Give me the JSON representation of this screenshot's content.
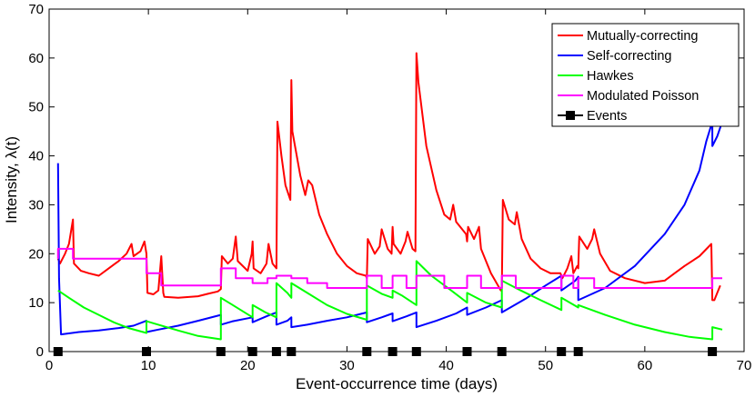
{
  "chart_data": {
    "type": "line",
    "title": "",
    "xlabel": "Event-occurrence time (days)",
    "ylabel": "Intensity, λ(t)",
    "xlim": [
      0,
      70
    ],
    "ylim": [
      0,
      70
    ],
    "xticks": [
      0,
      10,
      20,
      30,
      40,
      50,
      60,
      70
    ],
    "yticks": [
      0,
      10,
      20,
      30,
      40,
      50,
      60,
      70
    ],
    "grid": false,
    "legend_position": "top-right",
    "events": [
      0.9,
      9.8,
      17.3,
      20.5,
      22.9,
      24.4,
      32.0,
      34.6,
      37.0,
      42.1,
      45.6,
      51.6,
      53.3,
      66.8
    ],
    "series": [
      {
        "name": "Mutually-correcting",
        "color": "#ff0000",
        "x": [
          0.9,
          1.1,
          1.6,
          2.0,
          2.4,
          2.5,
          3.2,
          4.0,
          5.0,
          6.0,
          7.0,
          7.8,
          8.3,
          8.5,
          9.2,
          9.6,
          9.8,
          9.9,
          10.5,
          11.0,
          11.3,
          11.5,
          11.6,
          13.0,
          15.0,
          16.0,
          17.0,
          17.3,
          17.4,
          18.0,
          18.5,
          18.8,
          19.0,
          20.0,
          20.4,
          20.5,
          20.6,
          21.3,
          21.9,
          22.1,
          22.5,
          22.9,
          23.0,
          23.4,
          23.8,
          24.3,
          24.4,
          24.5,
          25.3,
          25.8,
          26.1,
          26.5,
          27.2,
          28.0,
          29.0,
          30.0,
          31.0,
          31.9,
          32.0,
          32.1,
          32.8,
          33.3,
          33.5,
          34.1,
          34.5,
          34.6,
          34.7,
          35.4,
          35.9,
          36.1,
          36.6,
          36.9,
          37.0,
          37.2,
          38.0,
          39.0,
          39.8,
          40.4,
          40.7,
          41.0,
          42.0,
          42.1,
          42.2,
          42.8,
          43.3,
          43.5,
          44.5,
          45.5,
          45.6,
          45.7,
          46.3,
          46.9,
          47.1,
          47.6,
          48.5,
          49.5,
          50.5,
          51.5,
          51.6,
          51.7,
          52.2,
          52.6,
          52.8,
          53.2,
          53.3,
          53.4,
          54.2,
          54.7,
          54.9,
          55.5,
          56.5,
          58.0,
          60.0,
          62.0,
          63.0,
          64.0,
          65.5,
          66.7,
          66.8,
          67.0,
          67.3,
          67.6
        ],
        "values": [
          19,
          18,
          20,
          22,
          27,
          18,
          16.5,
          16,
          15.5,
          17,
          18.5,
          20,
          22,
          19.5,
          20.5,
          22.5,
          20,
          12,
          11.7,
          12.5,
          19.5,
          12,
          11.2,
          11,
          11.3,
          11.8,
          12.3,
          12.8,
          19.5,
          18,
          19,
          23.5,
          18.5,
          16.5,
          20,
          22.5,
          17,
          16,
          18,
          22,
          18,
          17,
          47,
          40,
          34,
          31,
          55.5,
          45,
          36,
          32,
          35,
          34,
          28,
          24,
          20,
          17.5,
          16,
          15.5,
          15,
          23,
          20,
          21.5,
          25,
          21,
          20,
          25.5,
          22,
          20,
          22.5,
          24.5,
          21,
          20.5,
          61,
          55,
          42,
          33,
          28,
          27,
          30,
          26.5,
          24,
          22.5,
          25.5,
          23,
          25.5,
          21,
          16,
          12.5,
          13,
          31,
          27,
          26,
          28.5,
          23,
          19,
          17,
          16,
          16,
          15.5,
          15,
          17,
          19.5,
          16,
          17.5,
          17,
          23.5,
          21,
          23,
          25,
          20,
          16.5,
          15,
          14,
          14.5,
          16,
          17.5,
          19.5,
          22,
          10.5,
          10.5,
          12,
          13.5
        ]
      },
      {
        "name": "Self-correcting",
        "color": "#0000ff",
        "x": [
          0.9,
          1.0,
          1.2,
          3.0,
          5.0,
          7.0,
          8.5,
          9.8,
          9.8,
          11.0,
          13.0,
          15.0,
          17.3,
          17.3,
          18.5,
          20.5,
          20.5,
          22.0,
          22.9,
          22.9,
          24.0,
          24.4,
          24.4,
          26.0,
          28.0,
          30.0,
          32.0,
          32.0,
          33.5,
          34.6,
          34.6,
          36.0,
          37.0,
          37.0,
          39.0,
          41.0,
          42.1,
          42.1,
          44.0,
          45.6,
          45.6,
          48.0,
          50.0,
          51.6,
          51.6,
          53.0,
          53.3,
          53.3,
          56.0,
          59.0,
          62.0,
          64.0,
          65.5,
          66.2,
          66.8,
          66.8,
          67.3,
          67.8
        ],
        "values": [
          38.5,
          15,
          3.5,
          4,
          4.3,
          4.8,
          5.3,
          6.3,
          4,
          4.5,
          5.3,
          6.3,
          7.5,
          5.5,
          6.2,
          7,
          6,
          7.3,
          8,
          5.5,
          6.3,
          7,
          5,
          5.5,
          6.3,
          7,
          8,
          6,
          7,
          7.8,
          6.2,
          7.2,
          8,
          5,
          6.3,
          7.8,
          9,
          7.5,
          9,
          10.5,
          8,
          10.8,
          13.5,
          15.5,
          12.5,
          14.5,
          15.3,
          10.5,
          13,
          17.5,
          24,
          30,
          37,
          43,
          47,
          42,
          44,
          47
        ]
      },
      {
        "name": "Hawkes",
        "color": "#00ff00",
        "x": [
          0.9,
          2.0,
          3.5,
          5.0,
          6.5,
          8.0,
          9.8,
          9.8,
          11.0,
          13.0,
          15.0,
          17.3,
          17.3,
          18.5,
          20.5,
          20.5,
          21.8,
          22.9,
          22.9,
          24.0,
          24.4,
          24.4,
          26.0,
          28.0,
          30.0,
          32.0,
          32.0,
          33.5,
          34.6,
          34.6,
          35.5,
          37.0,
          37.0,
          38.5,
          40.5,
          42.1,
          42.1,
          44.0,
          45.6,
          45.6,
          47.5,
          49.5,
          51.6,
          51.6,
          53.3,
          53.3,
          56.0,
          59.0,
          62.0,
          64.5,
          66.8,
          66.8,
          67.8
        ],
        "values": [
          12.5,
          11,
          9,
          7.5,
          6,
          4.8,
          3.8,
          6.2,
          5.5,
          4.3,
          3.2,
          2.5,
          11,
          9.5,
          7,
          9.5,
          8,
          7,
          14,
          12,
          11,
          14,
          12,
          9.5,
          7.7,
          6.5,
          13.5,
          11.8,
          11,
          12.5,
          11.5,
          9.5,
          18.5,
          15.5,
          12.5,
          10,
          12,
          10,
          9,
          14.5,
          12.5,
          10.5,
          8.5,
          11,
          9,
          9.5,
          7.5,
          5.5,
          4,
          3,
          2.5,
          5,
          4.5
        ]
      },
      {
        "name": "Modulated Poisson",
        "color": "#ff00ff",
        "x": [
          0.9,
          0.9,
          2.4,
          2.4,
          9.8,
          9.8,
          11.3,
          11.3,
          17.3,
          17.3,
          18.8,
          18.8,
          20.5,
          20.5,
          22.0,
          22.0,
          22.9,
          22.9,
          24.4,
          24.4,
          26.0,
          26.0,
          28.0,
          28.0,
          32.0,
          32.0,
          33.5,
          33.5,
          34.6,
          34.6,
          36.0,
          36.0,
          37.0,
          37.0,
          39.8,
          39.8,
          42.1,
          42.1,
          43.5,
          43.5,
          45.6,
          45.6,
          47.0,
          47.0,
          51.6,
          51.6,
          52.8,
          52.8,
          53.3,
          53.3,
          54.9,
          54.9,
          66.8,
          66.8,
          67.8
        ],
        "values": [
          19,
          21,
          21,
          19,
          19,
          16,
          16,
          13.5,
          13.5,
          17,
          17,
          15,
          15,
          14,
          14,
          15,
          15,
          15.5,
          15.5,
          15,
          15,
          14,
          14,
          13,
          13,
          15.5,
          15.5,
          13,
          13,
          15.5,
          15.5,
          13,
          13,
          15.5,
          15.5,
          13,
          13,
          15.5,
          15.5,
          13,
          13,
          15.5,
          15.5,
          13,
          13,
          15.5,
          15.5,
          13,
          13,
          15,
          15,
          13,
          13,
          15,
          15
        ]
      }
    ]
  }
}
